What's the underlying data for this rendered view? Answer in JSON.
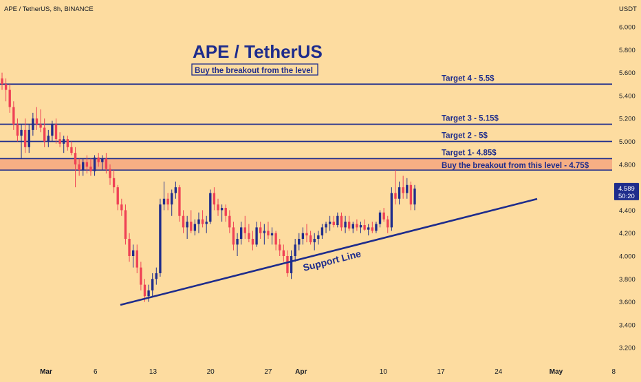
{
  "chart_data": {
    "type": "candlestick",
    "header": "APE / TetherUS, 8h, BINANCE",
    "currency": "USDT",
    "title": "APE / TetherUS",
    "subtitle": "Buy the breakout from the level",
    "y_ticks": [
      "6.000",
      "5.800",
      "5.600",
      "5.400",
      "5.200",
      "5.000",
      "4.800",
      "4.600",
      "4.400",
      "4.200",
      "4.000",
      "3.800",
      "3.600",
      "3.400",
      "3.200"
    ],
    "ylim": [
      3.13,
      6.13
    ],
    "x_ticks": [
      {
        "label": "Mar",
        "day": 28
      },
      {
        "label": "6",
        "day": 34
      },
      {
        "label": "13",
        "day": 41
      },
      {
        "label": "20",
        "day": 48
      },
      {
        "label": "27",
        "day": 55
      },
      {
        "label": "Apr",
        "day": 59
      },
      {
        "label": "10",
        "day": 69
      },
      {
        "label": "17",
        "day": 76
      },
      {
        "label": "24",
        "day": 83
      },
      {
        "label": "May",
        "day": 90
      },
      {
        "label": "8",
        "day": 97
      }
    ],
    "x_note": "day = days since Feb 1",
    "levels": [
      {
        "label": "Target 4 - 5.5$",
        "value": 5.5
      },
      {
        "label": "Target 3 - 5.15$",
        "value": 5.15
      },
      {
        "label": "Target 2 - 5$",
        "value": 5.0
      },
      {
        "label": "Target 1- 4.85$",
        "value": 4.85
      }
    ],
    "breakout_zone": {
      "label": "Buy the breakout from this level - 4.75$",
      "top": 4.85,
      "bottom": 4.75
    },
    "support_line": {
      "label": "Support Line",
      "start": {
        "day": 40.5,
        "price": 3.58
      },
      "end": {
        "day": 78,
        "price": 4.5
      }
    },
    "current_price": "4.589",
    "countdown": "50:20",
    "colors": {
      "up": "#1E2C8C",
      "down": "#EF4155",
      "background": "#FDDCA0",
      "line": "#1E2C8C",
      "zone": "#F4A77F",
      "label_bg": "#1E2C8C"
    },
    "ohlc": [
      [
        5.55,
        5.6,
        5.45,
        5.5
      ],
      [
        5.5,
        5.55,
        5.35,
        5.45
      ],
      [
        5.45,
        5.5,
        5.25,
        5.3
      ],
      [
        5.3,
        5.35,
        5.1,
        5.15
      ],
      [
        5.15,
        5.2,
        5.0,
        5.05
      ],
      [
        5.05,
        5.15,
        4.85,
        5.1
      ],
      [
        5.1,
        5.2,
        4.9,
        4.95
      ],
      [
        4.95,
        5.15,
        4.9,
        5.1
      ],
      [
        5.1,
        5.25,
        5.05,
        5.2
      ],
      [
        5.2,
        5.3,
        5.1,
        5.15
      ],
      [
        5.15,
        5.28,
        5.08,
        5.12
      ],
      [
        5.12,
        5.2,
        4.95,
        5.0
      ],
      [
        5.0,
        5.1,
        4.95,
        5.05
      ],
      [
        5.05,
        5.18,
        5.0,
        5.15
      ],
      [
        5.15,
        5.2,
        4.98,
        5.02
      ],
      [
        5.02,
        5.08,
        4.95,
        4.98
      ],
      [
        4.98,
        5.05,
        4.9,
        5.02
      ],
      [
        5.02,
        5.05,
        4.92,
        4.95
      ],
      [
        4.95,
        5.0,
        4.88,
        4.9
      ],
      [
        4.9,
        4.95,
        4.6,
        4.8
      ],
      [
        4.8,
        4.85,
        4.7,
        4.75
      ],
      [
        4.75,
        4.85,
        4.7,
        4.82
      ],
      [
        4.82,
        4.88,
        4.72,
        4.78
      ],
      [
        4.78,
        4.85,
        4.7,
        4.74
      ],
      [
        4.74,
        4.88,
        4.7,
        4.86
      ],
      [
        4.86,
        4.9,
        4.78,
        4.82
      ],
      [
        4.82,
        4.88,
        4.75,
        4.85
      ],
      [
        4.85,
        4.9,
        4.72,
        4.76
      ],
      [
        4.76,
        4.8,
        4.62,
        4.68
      ],
      [
        4.68,
        4.75,
        4.55,
        4.6
      ],
      [
        4.6,
        4.62,
        4.4,
        4.45
      ],
      [
        4.45,
        4.5,
        4.35,
        4.4
      ],
      [
        4.4,
        4.45,
        4.1,
        4.15
      ],
      [
        4.15,
        4.2,
        3.95,
        4.0
      ],
      [
        4.0,
        4.1,
        3.9,
        4.05
      ],
      [
        4.05,
        4.1,
        3.85,
        3.9
      ],
      [
        3.9,
        3.95,
        3.7,
        3.75
      ],
      [
        3.75,
        3.8,
        3.6,
        3.65
      ],
      [
        3.65,
        3.75,
        3.6,
        3.7
      ],
      [
        3.7,
        3.85,
        3.65,
        3.8
      ],
      [
        3.8,
        3.9,
        3.75,
        3.85
      ],
      [
        3.85,
        4.5,
        3.82,
        4.45
      ],
      [
        4.45,
        4.65,
        4.4,
        4.5
      ],
      [
        4.5,
        4.55,
        4.4,
        4.45
      ],
      [
        4.45,
        4.58,
        4.35,
        4.55
      ],
      [
        4.55,
        4.65,
        4.5,
        4.6
      ],
      [
        4.6,
        4.62,
        4.3,
        4.35
      ],
      [
        4.35,
        4.4,
        4.2,
        4.25
      ],
      [
        4.25,
        4.35,
        4.15,
        4.3
      ],
      [
        4.3,
        4.4,
        4.2,
        4.22
      ],
      [
        4.22,
        4.32,
        4.18,
        4.28
      ],
      [
        4.28,
        4.38,
        4.2,
        4.32
      ],
      [
        4.32,
        4.4,
        4.25,
        4.28
      ],
      [
        4.28,
        4.35,
        4.2,
        4.3
      ],
      [
        4.3,
        4.58,
        4.28,
        4.55
      ],
      [
        4.55,
        4.6,
        4.4,
        4.45
      ],
      [
        4.45,
        4.5,
        4.35,
        4.4
      ],
      [
        4.4,
        4.45,
        4.3,
        4.42
      ],
      [
        4.42,
        4.45,
        4.3,
        4.35
      ],
      [
        4.35,
        4.4,
        4.2,
        4.25
      ],
      [
        4.25,
        4.3,
        4.05,
        4.1
      ],
      [
        4.1,
        4.2,
        4.0,
        4.15
      ],
      [
        4.15,
        4.3,
        4.1,
        4.25
      ],
      [
        4.25,
        4.35,
        4.15,
        4.2
      ],
      [
        4.2,
        4.28,
        4.12,
        4.15
      ],
      [
        4.15,
        4.22,
        4.05,
        4.1
      ],
      [
        4.1,
        4.3,
        4.08,
        4.25
      ],
      [
        4.25,
        4.3,
        4.15,
        4.2
      ],
      [
        4.2,
        4.28,
        4.1,
        4.22
      ],
      [
        4.22,
        4.3,
        4.15,
        4.18
      ],
      [
        4.18,
        4.25,
        4.1,
        4.2
      ],
      [
        4.2,
        4.22,
        4.05,
        4.1
      ],
      [
        4.1,
        4.15,
        4.0,
        4.05
      ],
      [
        4.05,
        4.1,
        3.95,
        4.0
      ],
      [
        4.0,
        4.05,
        3.82,
        3.85
      ],
      [
        3.85,
        4.05,
        3.8,
        4.0
      ],
      [
        4.0,
        4.15,
        3.95,
        4.1
      ],
      [
        4.1,
        4.2,
        4.05,
        4.15
      ],
      [
        4.15,
        4.25,
        4.1,
        4.2
      ],
      [
        4.2,
        4.28,
        4.12,
        4.18
      ],
      [
        4.18,
        4.22,
        4.1,
        4.12
      ],
      [
        4.12,
        4.2,
        4.05,
        4.15
      ],
      [
        4.15,
        4.22,
        4.1,
        4.18
      ],
      [
        4.18,
        4.28,
        4.15,
        4.25
      ],
      [
        4.25,
        4.3,
        4.2,
        4.28
      ],
      [
        4.28,
        4.35,
        4.22,
        4.3
      ],
      [
        4.3,
        4.35,
        4.25,
        4.27
      ],
      [
        4.27,
        4.38,
        4.25,
        4.35
      ],
      [
        4.35,
        4.38,
        4.22,
        4.25
      ],
      [
        4.25,
        4.35,
        4.2,
        4.3
      ],
      [
        4.3,
        4.35,
        4.22,
        4.24
      ],
      [
        4.24,
        4.3,
        4.2,
        4.28
      ],
      [
        4.28,
        4.32,
        4.22,
        4.25
      ],
      [
        4.25,
        4.3,
        4.2,
        4.27
      ],
      [
        4.27,
        4.32,
        4.22,
        4.23
      ],
      [
        4.23,
        4.28,
        4.18,
        4.25
      ],
      [
        4.25,
        4.3,
        4.2,
        4.22
      ],
      [
        4.22,
        4.3,
        4.2,
        4.28
      ],
      [
        4.28,
        4.4,
        4.25,
        4.38
      ],
      [
        4.38,
        4.42,
        4.3,
        4.32
      ],
      [
        4.32,
        4.35,
        4.2,
        4.25
      ],
      [
        4.25,
        4.6,
        4.22,
        4.55
      ],
      [
        4.55,
        4.75,
        4.45,
        4.5
      ],
      [
        4.5,
        4.65,
        4.45,
        4.6
      ],
      [
        4.6,
        4.7,
        4.5,
        4.55
      ],
      [
        4.55,
        4.68,
        4.5,
        4.62
      ],
      [
        4.62,
        4.65,
        4.4,
        4.45
      ],
      [
        4.45,
        4.62,
        4.4,
        4.589
      ]
    ]
  }
}
